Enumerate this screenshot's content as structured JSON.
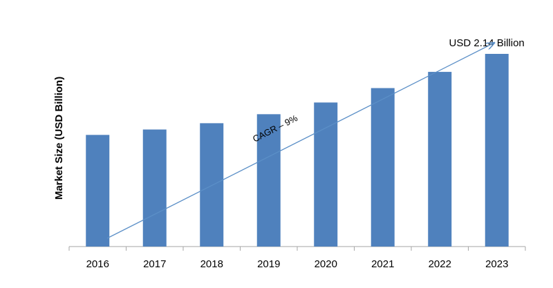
{
  "chart_data": {
    "type": "bar",
    "y_label": "Market Size (USD Billion)",
    "categories": [
      "2016",
      "2017",
      "2018",
      "2019",
      "2020",
      "2021",
      "2022",
      "2023"
    ],
    "values": [
      1.24,
      1.3,
      1.37,
      1.47,
      1.6,
      1.76,
      1.94,
      2.14
    ],
    "value_labels": [
      null,
      null,
      null,
      null,
      null,
      null,
      null,
      "USD 2.14 Billion"
    ],
    "color": "#4f81bd",
    "annotation": "CAGR – 9%"
  }
}
